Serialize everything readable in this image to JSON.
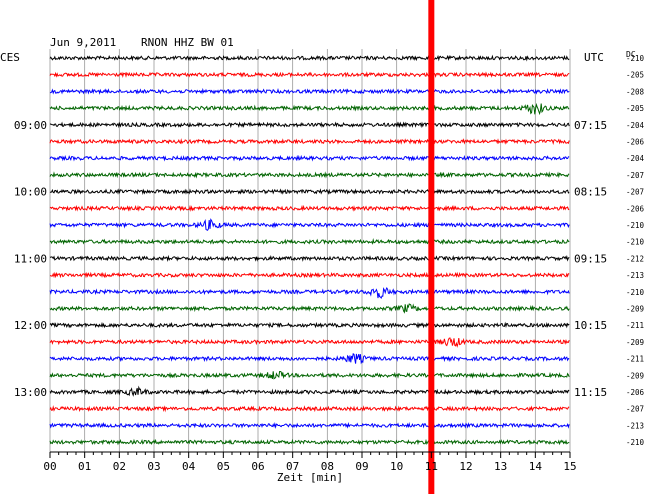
{
  "header": {
    "date": "Jun 9,2011",
    "station": "RNON HHZ BW 01",
    "left_zone": "CES",
    "right_zone": "UTC",
    "dc_label": "DC"
  },
  "chart_data": {
    "type": "line",
    "title": "Jun 9,2011   RNON HHZ BW 01",
    "xlabel": "Zeit [min]",
    "xlim": [
      0,
      15
    ],
    "x_ticks": [
      "00",
      "01",
      "02",
      "03",
      "04",
      "05",
      "06",
      "07",
      "08",
      "09",
      "10",
      "11",
      "12",
      "13",
      "14",
      "15"
    ],
    "grid": true,
    "trace_colors": [
      "#000000",
      "#ff0000",
      "#0000ff",
      "#006400"
    ],
    "left_time_labels": [
      {
        "trace": 4,
        "label": "09:00"
      },
      {
        "trace": 8,
        "label": "10:00"
      },
      {
        "trace": 12,
        "label": "11:00"
      },
      {
        "trace": 16,
        "label": "12:00"
      },
      {
        "trace": 20,
        "label": "13:00"
      }
    ],
    "right_time_labels": [
      {
        "trace": 4,
        "label": "07:15"
      },
      {
        "trace": 8,
        "label": "08:15"
      },
      {
        "trace": 12,
        "label": "09:15"
      },
      {
        "trace": 16,
        "label": "10:15"
      },
      {
        "trace": 20,
        "label": "11:15"
      }
    ],
    "dc_offsets": [
      "-210",
      "-205",
      "-208",
      "-205",
      "-204",
      "-206",
      "-204",
      "-207",
      "-207",
      "-206",
      "-210",
      "-210",
      "-212",
      "-213",
      "-210",
      "-209",
      "-211",
      "-209",
      "-211",
      "-209",
      "-206",
      "-207",
      "-213",
      "-210"
    ],
    "events": [
      {
        "trace": 3,
        "x": 14.0,
        "amplitude": 5
      },
      {
        "trace": 10,
        "x": 4.6,
        "amplitude": 4
      },
      {
        "trace": 14,
        "x": 9.5,
        "amplitude": 5
      },
      {
        "trace": 15,
        "x": 10.3,
        "amplitude": 3
      },
      {
        "trace": 17,
        "x": 11.6,
        "amplitude": 4
      },
      {
        "trace": 18,
        "x": 8.8,
        "amplitude": 4
      },
      {
        "trace": 19,
        "x": 6.5,
        "amplitude": 3
      },
      {
        "trace": 20,
        "x": 2.5,
        "amplitude": 3
      }
    ],
    "marker": {
      "x": 11.0,
      "color": "#ff0000"
    }
  }
}
